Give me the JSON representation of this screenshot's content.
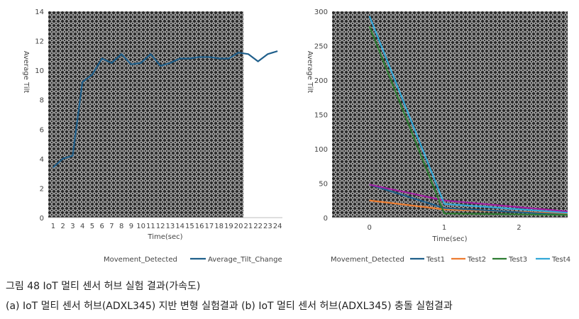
{
  "chart_data": [
    {
      "type": "line",
      "title": "",
      "xlabel": "Time(sec)",
      "ylabel": "Average Tilt",
      "x": [
        1,
        2,
        3,
        4,
        5,
        6,
        7,
        8,
        9,
        10,
        11,
        12,
        13,
        14,
        15,
        16,
        17,
        18,
        19,
        20,
        21,
        22,
        23,
        24
      ],
      "ylim": [
        0,
        14
      ],
      "yticks": [
        0,
        2,
        4,
        6,
        8,
        10,
        12,
        14
      ],
      "grid": false,
      "legend_position": "bottom",
      "series": [
        {
          "name": "Movement_Detected",
          "kind": "patterned-area",
          "color": "#2b2b2b"
        },
        {
          "name": "Average_Tilt_Change",
          "color": "#1f5f8b",
          "values": [
            3.4,
            4.0,
            4.2,
            9.2,
            9.7,
            10.8,
            10.5,
            11.1,
            10.4,
            10.5,
            11.1,
            10.3,
            10.5,
            10.8,
            10.8,
            10.9,
            10.9,
            10.8,
            10.8,
            11.2,
            11.1,
            10.6,
            11.1,
            11.3
          ]
        }
      ],
      "movement_band": {
        "x_start": 1,
        "x_end": 20
      }
    },
    {
      "type": "line",
      "title": "",
      "xlabel": "Time(sec)",
      "ylabel": "Average Tilt",
      "xlim": [
        -0.5,
        2.65
      ],
      "xticks": [
        0,
        1,
        2
      ],
      "ylim": [
        0,
        300
      ],
      "yticks": [
        0,
        50,
        100,
        150,
        200,
        250,
        300
      ],
      "grid": false,
      "legend_position": "bottom",
      "series": [
        {
          "name": "Movement_Detected",
          "kind": "patterned-area",
          "color": "#2b2b2b"
        },
        {
          "name": "Test1",
          "color": "#1f5f8b",
          "x": [
            0,
            1,
            2.65
          ],
          "values": [
            48,
            14,
            4
          ]
        },
        {
          "name": "Test2",
          "color": "#ed7d31",
          "x": [
            0,
            1,
            2.65
          ],
          "values": [
            25,
            12,
            6
          ]
        },
        {
          "name": "Test3",
          "color": "#2e7d32",
          "x": [
            0,
            1,
            2.65
          ],
          "values": [
            278,
            6,
            4
          ]
        },
        {
          "name": "Test4",
          "color": "#32a8d8",
          "x": [
            0,
            1,
            2.65
          ],
          "values": [
            293,
            20,
            7
          ]
        },
        {
          "name": "",
          "color": "#a020a0",
          "x": [
            0,
            1,
            2.65
          ],
          "values": [
            48,
            25,
            9
          ]
        }
      ]
    }
  ],
  "captions": {
    "title": "그림 48 IoT 멀티 센서 허브 실험 결과(가속도)",
    "sub": "(a) IoT 멀티 센서 허브(ADXL345) 지반 변형 실험결과 (b) IoT 멀티 센서 허브(ADXL345) 충돌 실험결과"
  }
}
